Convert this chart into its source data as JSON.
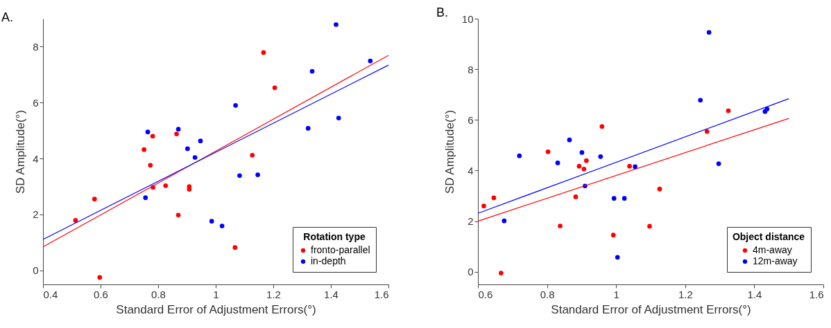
{
  "chart_data": [
    {
      "type": "scatter",
      "title": "A.",
      "xlabel": "Standard Error of Adjustment Errors(°)",
      "ylabel": "SD Amplitude(°)",
      "legend_title": "Rotation type",
      "legend": "bottom right",
      "grid": false,
      "xlim": [
        0.4,
        1.6
      ],
      "xticks": [
        0.4,
        0.6,
        0.8,
        1,
        1.2,
        1.4,
        1.6
      ],
      "ylim": [
        -0.5,
        9
      ],
      "yticks": [
        0,
        2,
        4,
        6,
        8
      ],
      "series": [
        {
          "name": "fronto-parallel",
          "color": "#ff0000",
          "marker": "circle",
          "x": [
            0.513,
            0.579,
            0.597,
            0.751,
            0.781,
            0.773,
            0.782,
            0.826,
            0.864,
            0.87,
            0.908,
            0.908,
            1.166,
            1.205,
            1.127,
            1.067
          ],
          "values": [
            1.79,
            2.55,
            -0.25,
            4.32,
            4.8,
            3.76,
            2.97,
            3.03,
            4.88,
            1.98,
            3.0,
            2.9,
            7.79,
            6.53,
            4.12,
            0.82
          ]
        },
        {
          "name": "in-depth",
          "color": "#0000ff",
          "marker": "circle",
          "x": [
            0.764,
            0.87,
            0.902,
            0.928,
            0.947,
            0.756,
            0.986,
            1.022,
            1.069,
            1.083,
            1.146,
            1.321,
            1.335,
            1.418,
            1.427,
            1.537
          ],
          "values": [
            4.95,
            5.05,
            4.35,
            4.04,
            4.63,
            2.6,
            1.76,
            1.59,
            5.9,
            3.39,
            3.42,
            5.08,
            7.12,
            8.79,
            5.45,
            7.49
          ]
        },
        {
          "type": "line",
          "color": "#ff0000",
          "x": [
            0.4,
            1.6
          ],
          "values": [
            0.84,
            7.69
          ]
        },
        {
          "type": "line",
          "color": "#0000ff",
          "x": [
            0.4,
            1.6
          ],
          "values": [
            1.11,
            7.34
          ]
        }
      ]
    },
    {
      "type": "scatter",
      "title": "B.",
      "xlabel": "Standard Error of Adjustment Errors(°)",
      "ylabel": "SD Amplitude(°)",
      "legend_title": "Object distance",
      "legend": "bottom right",
      "grid": false,
      "xlim": [
        0.6,
        1.6
      ],
      "xticks": [
        0.6,
        0.8,
        1,
        1.2,
        1.4,
        1.6
      ],
      "ylim": [
        -0.5,
        10
      ],
      "yticks": [
        0,
        2,
        4,
        6,
        8,
        10
      ],
      "series": [
        {
          "name": "4m-away",
          "color": "#ff0000",
          "marker": "circle",
          "x": [
            0.617,
            0.646,
            0.667,
            0.803,
            0.838,
            0.883,
            0.893,
            0.907,
            0.914,
            0.959,
            0.992,
            1.039,
            1.097,
            1.126,
            1.263,
            1.325
          ],
          "values": [
            2.6,
            2.92,
            -0.05,
            4.74,
            1.81,
            2.96,
            4.17,
            4.06,
            4.39,
            5.74,
            1.45,
            4.17,
            1.8,
            3.27,
            5.54,
            6.36
          ]
        },
        {
          "name": "12m-away",
          "color": "#0000ff",
          "marker": "circle",
          "x": [
            0.676,
            0.72,
            0.831,
            0.865,
            0.901,
            0.91,
            0.955,
            0.994,
            1.004,
            1.024,
            1.055,
            1.244,
            1.269,
            1.297,
            1.431,
            1.437
          ],
          "values": [
            2.01,
            4.58,
            4.3,
            5.21,
            4.71,
            3.39,
            4.55,
            2.9,
            0.57,
            2.9,
            4.15,
            6.78,
            9.46,
            4.27,
            6.33,
            6.43
          ]
        },
        {
          "type": "line",
          "color": "#ff0000",
          "x": [
            0.6,
            1.5
          ],
          "values": [
            2.0,
            6.06
          ]
        },
        {
          "type": "line",
          "color": "#0000ff",
          "x": [
            0.6,
            1.5
          ],
          "values": [
            2.31,
            6.84
          ]
        }
      ]
    }
  ]
}
